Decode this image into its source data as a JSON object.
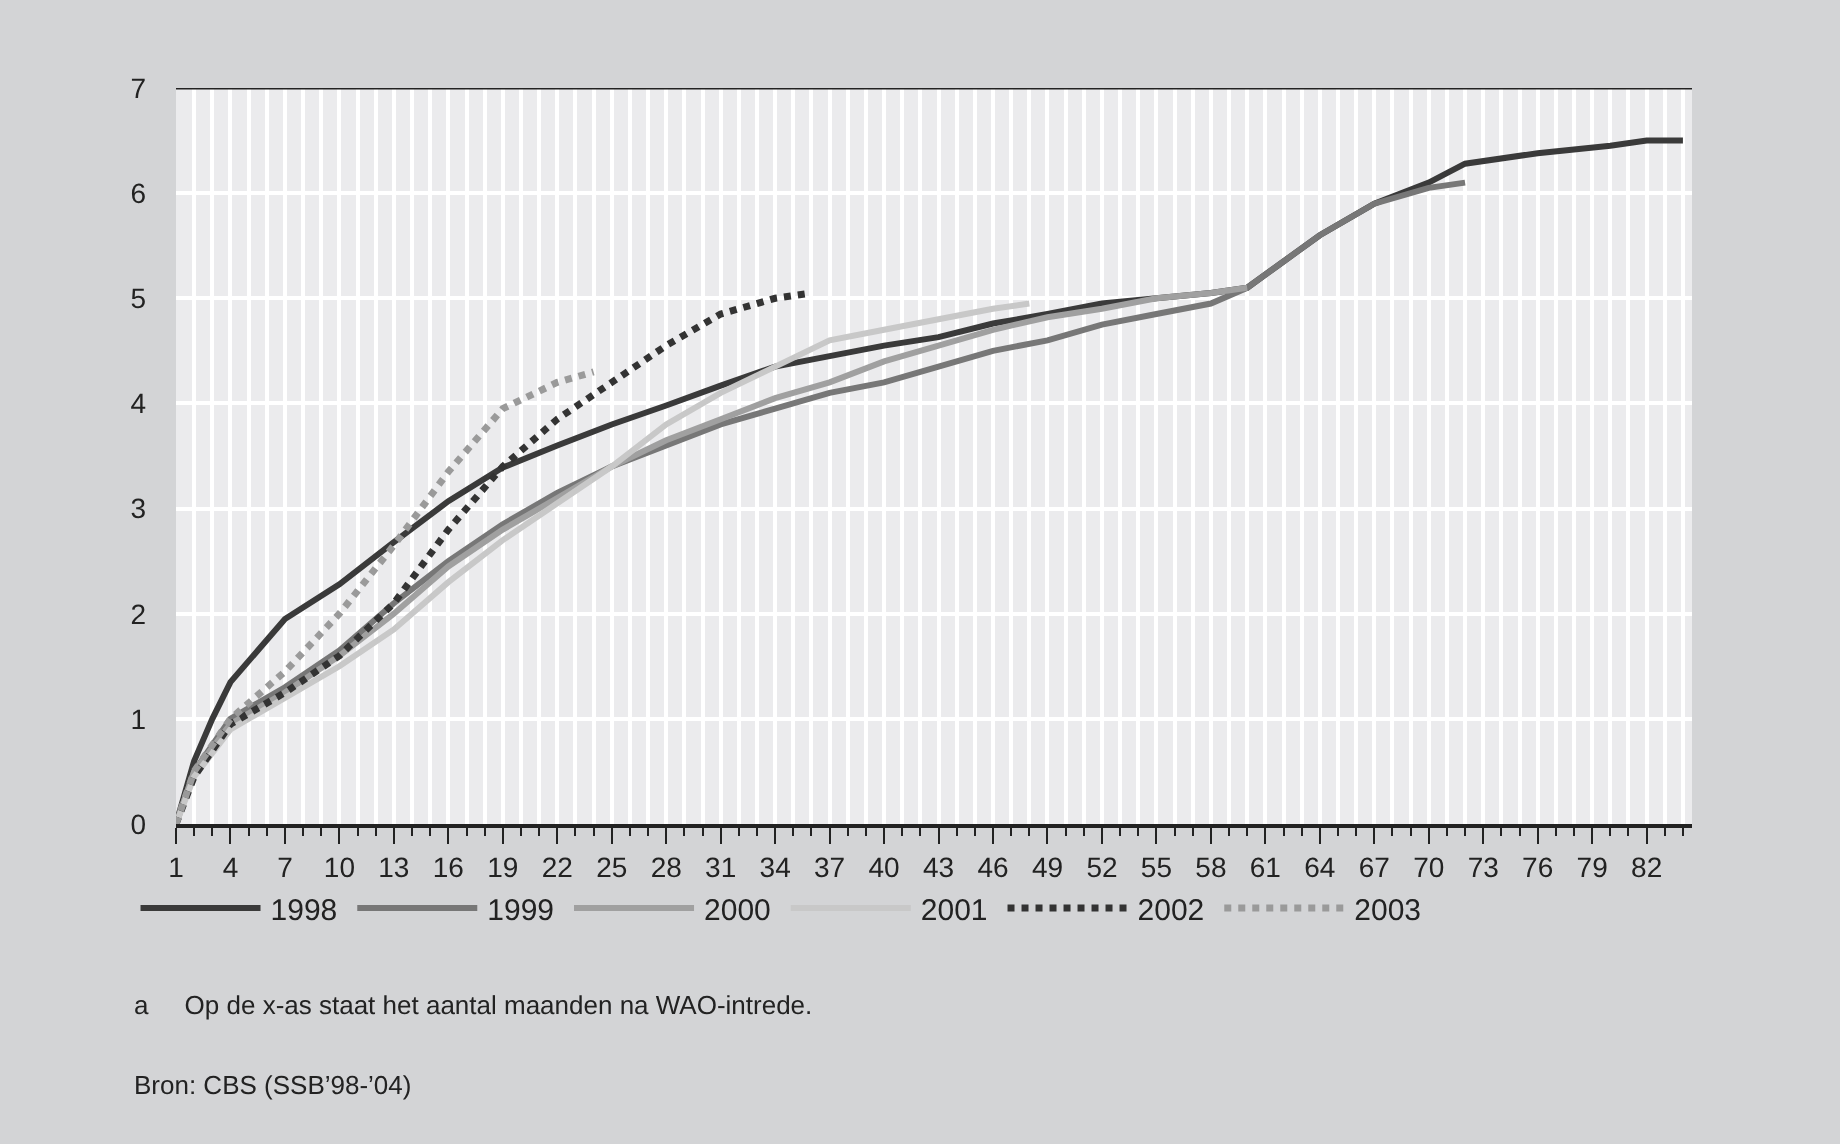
{
  "chart_data": {
    "type": "line",
    "annotations": [
      "a     Op de x-as staat het aantal maanden na WAO-intrede.",
      "Bron: CBS (SSB’98-’04)"
    ],
    "xlim": [
      1,
      84.5
    ],
    "xticks": [
      1,
      4,
      7,
      10,
      13,
      16,
      19,
      22,
      25,
      28,
      31,
      34,
      37,
      40,
      43,
      46,
      49,
      52,
      55,
      58,
      61,
      64,
      67,
      70,
      73,
      76,
      79,
      82
    ],
    "ylim": [
      0,
      7
    ],
    "yticks": [
      0,
      1,
      2,
      3,
      4,
      5,
      6,
      7
    ],
    "grid": true,
    "legend": "bottom",
    "marker": "none",
    "series": [
      {
        "name": "1998",
        "color": "#3a3a3a",
        "line_style": "solid",
        "x": [
          1,
          2,
          3,
          4,
          7,
          10,
          13,
          16,
          19,
          22,
          25,
          28,
          31,
          34,
          37,
          40,
          43,
          46,
          49,
          52,
          55,
          58,
          60,
          62,
          64,
          67,
          70,
          72,
          76,
          80,
          82,
          84
        ],
        "values": [
          0,
          0.6,
          1.0,
          1.35,
          1.95,
          2.28,
          2.68,
          3.07,
          3.39,
          3.6,
          3.8,
          3.98,
          4.17,
          4.35,
          4.45,
          4.55,
          4.63,
          4.76,
          4.85,
          4.95,
          5.0,
          5.05,
          5.1,
          5.35,
          5.6,
          5.9,
          6.1,
          6.28,
          6.38,
          6.45,
          6.5,
          6.5
        ]
      },
      {
        "name": "1999",
        "color": "#777777",
        "line_style": "solid",
        "x": [
          1,
          2,
          4,
          7,
          10,
          13,
          16,
          19,
          22,
          25,
          28,
          31,
          34,
          37,
          40,
          43,
          46,
          49,
          52,
          55,
          58,
          60,
          62,
          64,
          67,
          70,
          72
        ],
        "values": [
          0,
          0.5,
          1.0,
          1.3,
          1.65,
          2.1,
          2.5,
          2.85,
          3.15,
          3.4,
          3.6,
          3.8,
          3.95,
          4.1,
          4.2,
          4.35,
          4.5,
          4.6,
          4.75,
          4.85,
          4.95,
          5.1,
          5.35,
          5.6,
          5.9,
          6.05,
          6.1
        ]
      },
      {
        "name": "2000",
        "color": "#a0a0a0",
        "line_style": "solid",
        "x": [
          1,
          2,
          4,
          7,
          10,
          13,
          16,
          19,
          22,
          25,
          28,
          31,
          34,
          37,
          40,
          43,
          46,
          49,
          52,
          55,
          58,
          60
        ],
        "values": [
          0,
          0.5,
          0.95,
          1.25,
          1.6,
          2.0,
          2.45,
          2.8,
          3.1,
          3.4,
          3.65,
          3.85,
          4.05,
          4.2,
          4.4,
          4.55,
          4.7,
          4.82,
          4.9,
          5.0,
          5.05,
          5.1
        ]
      },
      {
        "name": "2001",
        "color": "#c8c8c8",
        "line_style": "solid",
        "x": [
          1,
          2,
          4,
          7,
          10,
          13,
          16,
          19,
          22,
          25,
          28,
          31,
          34,
          37,
          40,
          43,
          46,
          48
        ],
        "values": [
          0,
          0.45,
          0.9,
          1.2,
          1.5,
          1.85,
          2.3,
          2.7,
          3.05,
          3.4,
          3.8,
          4.1,
          4.35,
          4.6,
          4.7,
          4.8,
          4.9,
          4.95
        ]
      },
      {
        "name": "2002",
        "color": "#333333",
        "line_style": "dotted",
        "x": [
          1,
          2,
          4,
          7,
          10,
          13,
          16,
          19,
          22,
          25,
          28,
          31,
          34,
          36
        ],
        "values": [
          0,
          0.45,
          0.95,
          1.25,
          1.6,
          2.1,
          2.8,
          3.4,
          3.85,
          4.2,
          4.55,
          4.85,
          5.0,
          5.05
        ]
      },
      {
        "name": "2003",
        "color": "#9a9a9a",
        "line_style": "dotted",
        "x": [
          1,
          2,
          4,
          7,
          10,
          13,
          16,
          19,
          22,
          24
        ],
        "values": [
          0,
          0.5,
          1.0,
          1.45,
          2.0,
          2.65,
          3.35,
          3.95,
          4.2,
          4.3
        ]
      }
    ]
  }
}
